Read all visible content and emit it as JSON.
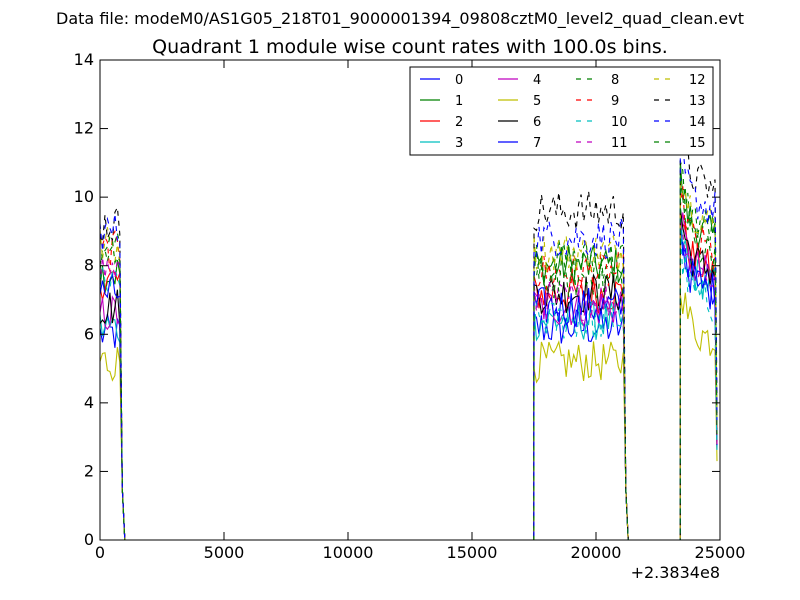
{
  "figure": {
    "suptitle": "Data file: modeM0/AS1G05_218T01_9000001394_09808cztM0_level2_quad_clean.evt"
  },
  "chart_data": {
    "type": "line",
    "title": "Quadrant 1 module wise count rates with 100.0s bins.",
    "xlabel": "",
    "ylabel": "",
    "x_offset_label": "+2.3834e8",
    "xlim": [
      0,
      25000
    ],
    "ylim": [
      0,
      14
    ],
    "x_ticks": [
      0,
      5000,
      10000,
      15000,
      20000,
      25000
    ],
    "x_tick_labels": [
      "0",
      "5000",
      "10000",
      "15000",
      "20000",
      "25000"
    ],
    "y_ticks": [
      0,
      2,
      4,
      6,
      8,
      10,
      12,
      14
    ],
    "y_tick_labels": [
      "0",
      "2",
      "4",
      "6",
      "8",
      "10",
      "12",
      "14"
    ],
    "grid": false,
    "legend_position": "top-right",
    "segments": [
      {
        "start": 0,
        "end": 800,
        "drop_end": 1000
      },
      {
        "start": 17500,
        "end": 21100,
        "drop_end": 21300
      },
      {
        "start": 23400,
        "end": 24850,
        "drop_end": 24850
      }
    ],
    "series": [
      {
        "name": "0",
        "color": "#0000ff",
        "style": "solid",
        "levels": [
          6.0,
          6.2,
          7.8
        ]
      },
      {
        "name": "1",
        "color": "#008000",
        "style": "solid",
        "levels": [
          7.8,
          8.0,
          9.2
        ]
      },
      {
        "name": "2",
        "color": "#ff0000",
        "style": "solid",
        "levels": [
          7.6,
          7.2,
          8.2
        ]
      },
      {
        "name": "3",
        "color": "#00bfbf",
        "style": "solid",
        "levels": [
          6.2,
          6.4,
          7.8
        ]
      },
      {
        "name": "4",
        "color": "#bf00bf",
        "style": "solid",
        "levels": [
          6.6,
          6.8,
          8.0
        ]
      },
      {
        "name": "5",
        "color": "#bfbf00",
        "style": "solid",
        "levels": [
          5.2,
          5.2,
          6.2
        ]
      },
      {
        "name": "6",
        "color": "#000000",
        "style": "solid",
        "levels": [
          6.8,
          7.2,
          8.2
        ]
      },
      {
        "name": "7",
        "color": "#0000ff",
        "style": "solid",
        "levels": [
          7.2,
          6.8,
          7.6
        ]
      },
      {
        "name": "8",
        "color": "#008000",
        "style": "dashed",
        "levels": [
          8.6,
          8.2,
          9.4
        ]
      },
      {
        "name": "9",
        "color": "#ff0000",
        "style": "dashed",
        "levels": [
          8.4,
          7.8,
          8.8
        ]
      },
      {
        "name": "10",
        "color": "#00bfbf",
        "style": "dashed",
        "levels": [
          7.4,
          6.4,
          7.2
        ]
      },
      {
        "name": "11",
        "color": "#bf00bf",
        "style": "dashed",
        "levels": [
          7.9,
          7.0,
          8.0
        ]
      },
      {
        "name": "12",
        "color": "#bfbf00",
        "style": "dashed",
        "levels": [
          8.6,
          8.4,
          9.6
        ]
      },
      {
        "name": "13",
        "color": "#000000",
        "style": "dashed",
        "levels": [
          9.2,
          9.6,
          10.6
        ]
      },
      {
        "name": "14",
        "color": "#0000ff",
        "style": "dashed",
        "levels": [
          9.0,
          8.8,
          10.0
        ]
      },
      {
        "name": "15",
        "color": "#008000",
        "style": "dashed",
        "levels": [
          8.3,
          7.6,
          8.8
        ]
      }
    ]
  }
}
